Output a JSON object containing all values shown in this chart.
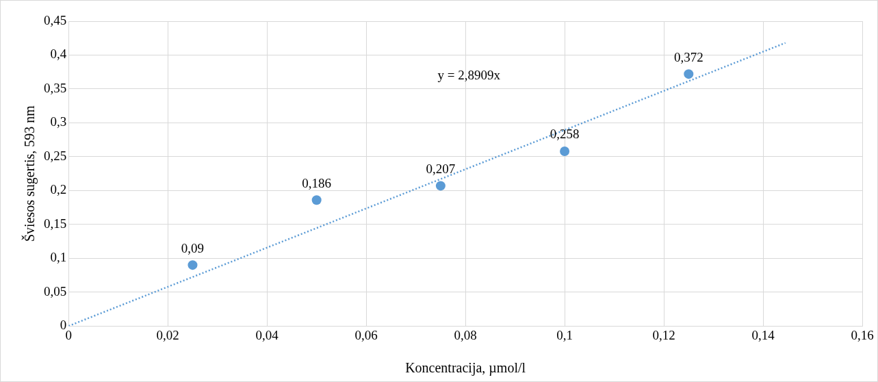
{
  "chart_data": {
    "type": "scatter",
    "xlabel": "Koncentracija, µmol/l",
    "ylabel": "Šviesos sugertis, 593 nm",
    "x": [
      0.025,
      0.05,
      0.075,
      0.1,
      0.125
    ],
    "series": [
      {
        "type": "scatter",
        "color": "#5b9bd5",
        "marker": "circle",
        "values": [
          0.09,
          0.186,
          0.207,
          0.258,
          0.372
        ],
        "value_labels": [
          "0,09",
          "0,186",
          "0,207",
          "0,258",
          "0,372"
        ]
      },
      {
        "type": "line",
        "color": "#5b9bd5",
        "marker": "none",
        "line_style": "dotted",
        "x": [
          0,
          0.1445
        ],
        "values": [
          0,
          0.418
        ]
      }
    ],
    "annotations": [
      "y = 2,8909x"
    ],
    "xlim": [
      0,
      0.16
    ],
    "xticks": [
      {
        "value": 0,
        "label": "0"
      },
      {
        "value": 0.02,
        "label": "0,02"
      },
      {
        "value": 0.04,
        "label": "0,04"
      },
      {
        "value": 0.06,
        "label": "0,06"
      },
      {
        "value": 0.08,
        "label": "0,08"
      },
      {
        "value": 0.1,
        "label": "0,1"
      },
      {
        "value": 0.12,
        "label": "0,12"
      },
      {
        "value": 0.14,
        "label": "0,14"
      },
      {
        "value": 0.16,
        "label": "0,16"
      }
    ],
    "ylim": [
      0,
      0.45
    ],
    "yticks": [
      {
        "value": 0,
        "label": "0"
      },
      {
        "value": 0.05,
        "label": "0,05"
      },
      {
        "value": 0.1,
        "label": "0,1"
      },
      {
        "value": 0.15,
        "label": "0,15"
      },
      {
        "value": 0.2,
        "label": "0,2"
      },
      {
        "value": 0.25,
        "label": "0,25"
      },
      {
        "value": 0.3,
        "label": "0,3"
      },
      {
        "value": 0.35,
        "label": "0,35"
      },
      {
        "value": 0.4,
        "label": "0,4"
      },
      {
        "value": 0.45,
        "label": "0,45"
      }
    ],
    "grid": true,
    "legend": false
  }
}
